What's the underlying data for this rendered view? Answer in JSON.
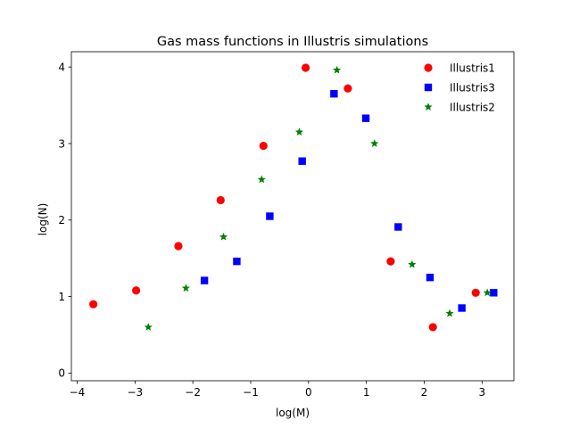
{
  "chart_data": {
    "type": "scatter",
    "title": "Gas mass functions in Illustris simulations",
    "xlabel": "log(M)",
    "ylabel": "log(N)",
    "xlim": [
      -4.1,
      3.55
    ],
    "ylim": [
      -0.1,
      4.2
    ],
    "xticks": [
      -4,
      -3,
      -2,
      -1,
      0,
      1,
      2,
      3
    ],
    "yticks": [
      0,
      1,
      2,
      3,
      4
    ],
    "grid": false,
    "legend_position": "top-right",
    "series": [
      {
        "name": "Illustris1",
        "color": "#ff0000",
        "marker": "circle",
        "x": [
          -3.72,
          -2.98,
          -2.25,
          -1.52,
          -0.78,
          -0.05,
          0.68,
          1.42,
          2.15,
          2.89
        ],
        "y": [
          0.9,
          1.08,
          1.66,
          2.26,
          2.97,
          3.99,
          3.72,
          1.46,
          0.6,
          1.05
        ]
      },
      {
        "name": "Illustris3",
        "color": "#0000ff",
        "marker": "square",
        "x": [
          -1.8,
          -1.24,
          -0.67,
          -0.11,
          0.44,
          0.99,
          1.55,
          2.1,
          2.65,
          3.2
        ],
        "y": [
          1.21,
          1.46,
          2.05,
          2.77,
          3.65,
          3.33,
          1.91,
          1.25,
          0.85,
          1.05
        ]
      },
      {
        "name": "Illustris2",
        "color": "#008000",
        "marker": "star",
        "x": [
          -2.77,
          -2.12,
          -1.47,
          -0.81,
          -0.16,
          0.49,
          1.14,
          1.79,
          2.44,
          3.09
        ],
        "y": [
          0.6,
          1.11,
          1.78,
          2.53,
          3.15,
          3.96,
          3.0,
          1.42,
          0.78,
          1.05
        ]
      }
    ]
  }
}
